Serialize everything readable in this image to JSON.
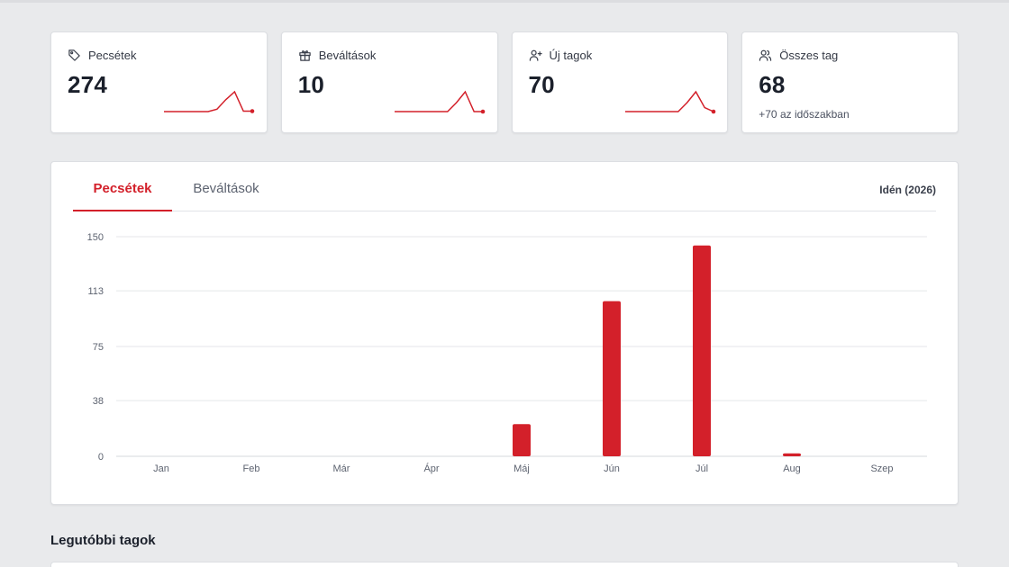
{
  "cards": [
    {
      "label": "Pecsétek",
      "value": "274",
      "icon": "tag-icon",
      "spark": [
        0,
        0,
        0,
        0,
        0,
        0,
        0.12,
        0.6,
        1,
        0.02,
        0.02
      ]
    },
    {
      "label": "Beváltások",
      "value": "10",
      "icon": "gift-icon",
      "spark": [
        0,
        0,
        0,
        0,
        0,
        0,
        0,
        0.45,
        1,
        0,
        0
      ]
    },
    {
      "label": "Új tagok",
      "value": "70",
      "icon": "user-plus-icon",
      "spark": [
        0,
        0,
        0,
        0,
        0,
        0,
        0,
        0.45,
        1,
        0.2,
        0
      ]
    },
    {
      "label": "Összes tag",
      "value": "68",
      "icon": "users-icon",
      "sub": "+70 az időszakban"
    }
  ],
  "tabs": [
    {
      "label": "Pecsétek",
      "active": true
    },
    {
      "label": "Beváltások",
      "active": false
    }
  ],
  "period": "Idén (2026)",
  "accent_color": "#d3202a",
  "chart_data": {
    "type": "bar",
    "categories": [
      "Jan",
      "Feb",
      "Már",
      "Ápr",
      "Máj",
      "Jún",
      "Júl",
      "Aug",
      "Szep"
    ],
    "values": [
      0,
      0,
      0,
      0,
      22,
      106,
      144,
      2,
      0
    ],
    "ylim": [
      0,
      150
    ],
    "yticks": [
      "0",
      "38",
      "75",
      "113",
      "150"
    ],
    "grid": true,
    "legend": "none"
  },
  "section_title": "Legutóbbi tagok"
}
